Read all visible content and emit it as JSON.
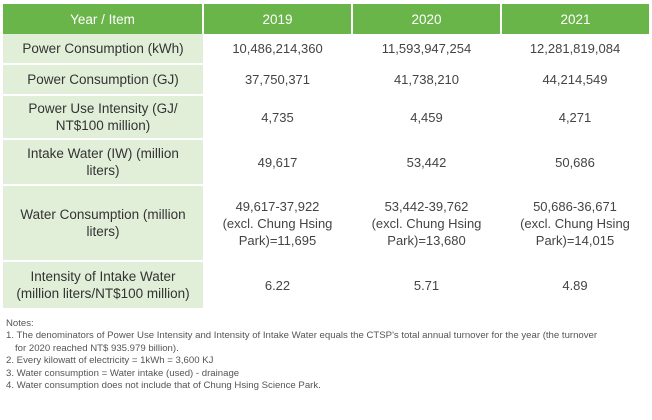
{
  "table": {
    "headers": [
      "Year / Item",
      "2019",
      "2020",
      "2021"
    ],
    "rows": [
      {
        "label": "Power Consumption (kWh)",
        "values": [
          "10,486,214,360",
          "11,593,947,254",
          "12,281,819,084"
        ]
      },
      {
        "label": "Power Consumption (GJ)",
        "values": [
          "37,750,371",
          "41,738,210",
          "44,214,549"
        ]
      },
      {
        "label_lines": [
          "Power Use Intensity (GJ/",
          "NT$100 million)"
        ],
        "values": [
          "4,735",
          "4,459",
          "4,271"
        ]
      },
      {
        "label_lines": [
          "Intake Water (IW) (million",
          "liters)"
        ],
        "values": [
          "49,617",
          "53,442",
          "50,686"
        ]
      },
      {
        "label_lines": [
          "Water Consumption (million",
          "liters)"
        ],
        "values_lines": [
          [
            "49,617-37,922",
            "(excl. Chung Hsing",
            "Park)=11,695"
          ],
          [
            "53,442-39,762",
            "(excl. Chung Hsing",
            "Park)=13,680"
          ],
          [
            "50,686-36,671",
            "(excl. Chung Hsing",
            "Park)=14,015"
          ]
        ]
      },
      {
        "label_lines": [
          "Intensity of Intake Water",
          "(million liters/NT$100 million)"
        ],
        "values": [
          "6.22",
          "5.71",
          "4.89"
        ]
      }
    ]
  },
  "notes": {
    "title": "Notes:",
    "items": [
      "1. The denominators of Power Use Intensity and Intensity of Intake Water equals the CTSP's total annual turnover for the year (the turnover",
      "for 2020 reached NT$ 935.979 billion).",
      "2. Every kilowatt of electricity = 1kWh = 3,600 KJ",
      "3. Water consumption = Water intake (used) - drainage",
      "4. Water consumption does not include that of Chung Hsing Science Park."
    ]
  },
  "colors": {
    "header_bg": "#6ab54a",
    "label_bg": "#e1efd9",
    "text": "#3a3a3a"
  }
}
